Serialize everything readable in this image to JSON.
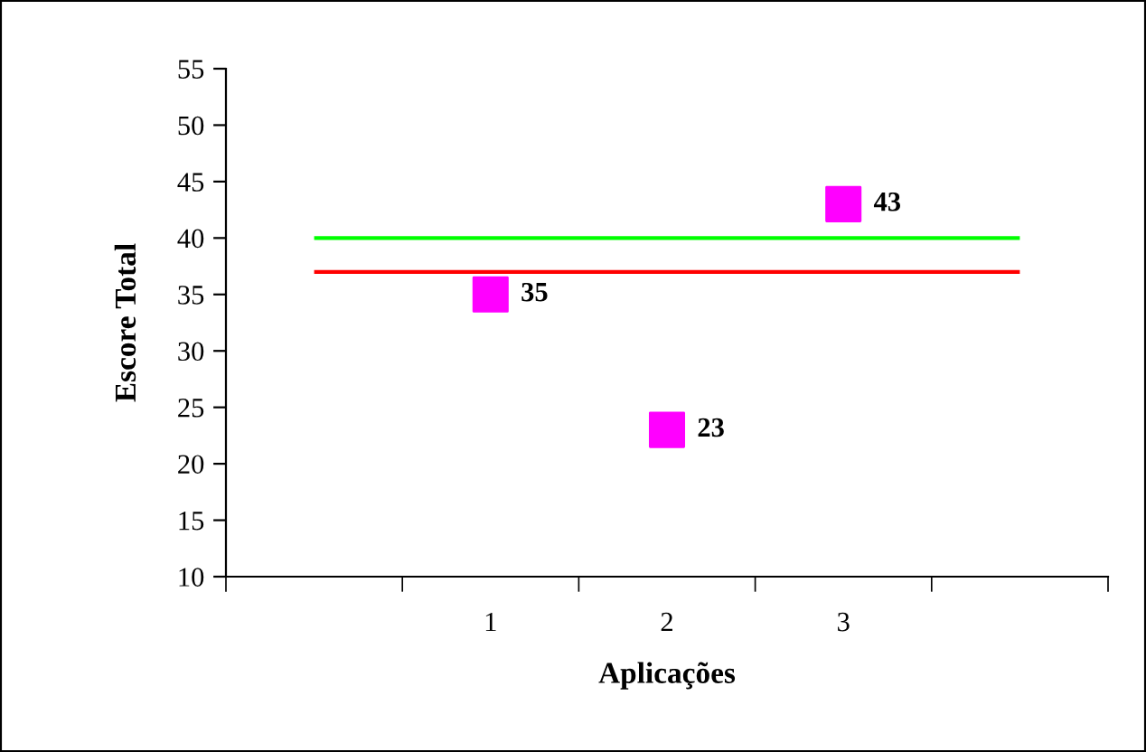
{
  "chart_data": {
    "type": "scatter",
    "xlabel": "Aplicações",
    "ylabel": "Escore Total",
    "categories": [
      null,
      "1",
      "2",
      "3",
      null
    ],
    "series": [
      {
        "color": "#ff00ff",
        "values": [
          null,
          35,
          23,
          43,
          null
        ]
      }
    ],
    "marker": "square",
    "data_labels": true,
    "grid": false,
    "legend": false,
    "ylim": [
      10,
      55
    ],
    "yticks": [
      10,
      15,
      20,
      25,
      30,
      35,
      40,
      45,
      50,
      55
    ],
    "ref_lines": [
      {
        "axis": "y",
        "value": 40,
        "color": "#00ff00"
      },
      {
        "axis": "y",
        "value": 37,
        "color": "#ff0000"
      }
    ]
  }
}
